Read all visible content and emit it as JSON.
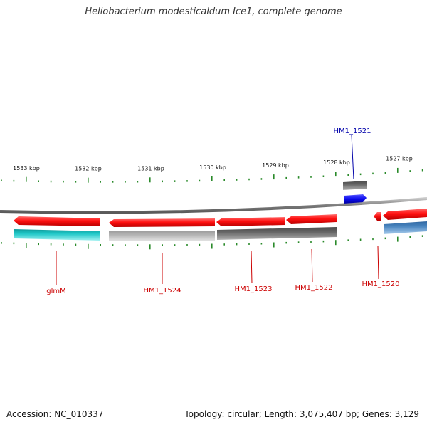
{
  "title": "Heliobacterium modesticaldum Ice1, complete genome",
  "footer": {
    "accession": "Accession: NC_010337",
    "summary": "Topology: circular; Length: 3,075,407 bp; Genes: 3,129"
  },
  "colors": {
    "gene_red": "#ff1010",
    "gene_blue": "#1010ee",
    "label_red": "#cc0000",
    "label_blue": "#0000aa",
    "cds_cyan": "#20c8c8",
    "cds_light_gray": "#b4b4b4",
    "cds_dark_gray": "#6a6a6a",
    "cds_steel": "#4a86c0",
    "tick_green": "#2a8a2a",
    "backbone": "#888888"
  },
  "ruler": {
    "labels": [
      "1533 kbp",
      "1532 kbp",
      "1531 kbp",
      "1530 kbp",
      "1529 kbp",
      "1528 kbp",
      "1527 kbp"
    ]
  },
  "genes": {
    "top": [
      "HM1_1521"
    ],
    "bottom": [
      "glmM",
      "HM1_1524",
      "HM1_1523",
      "HM1_1522",
      "HM1_1520"
    ]
  }
}
